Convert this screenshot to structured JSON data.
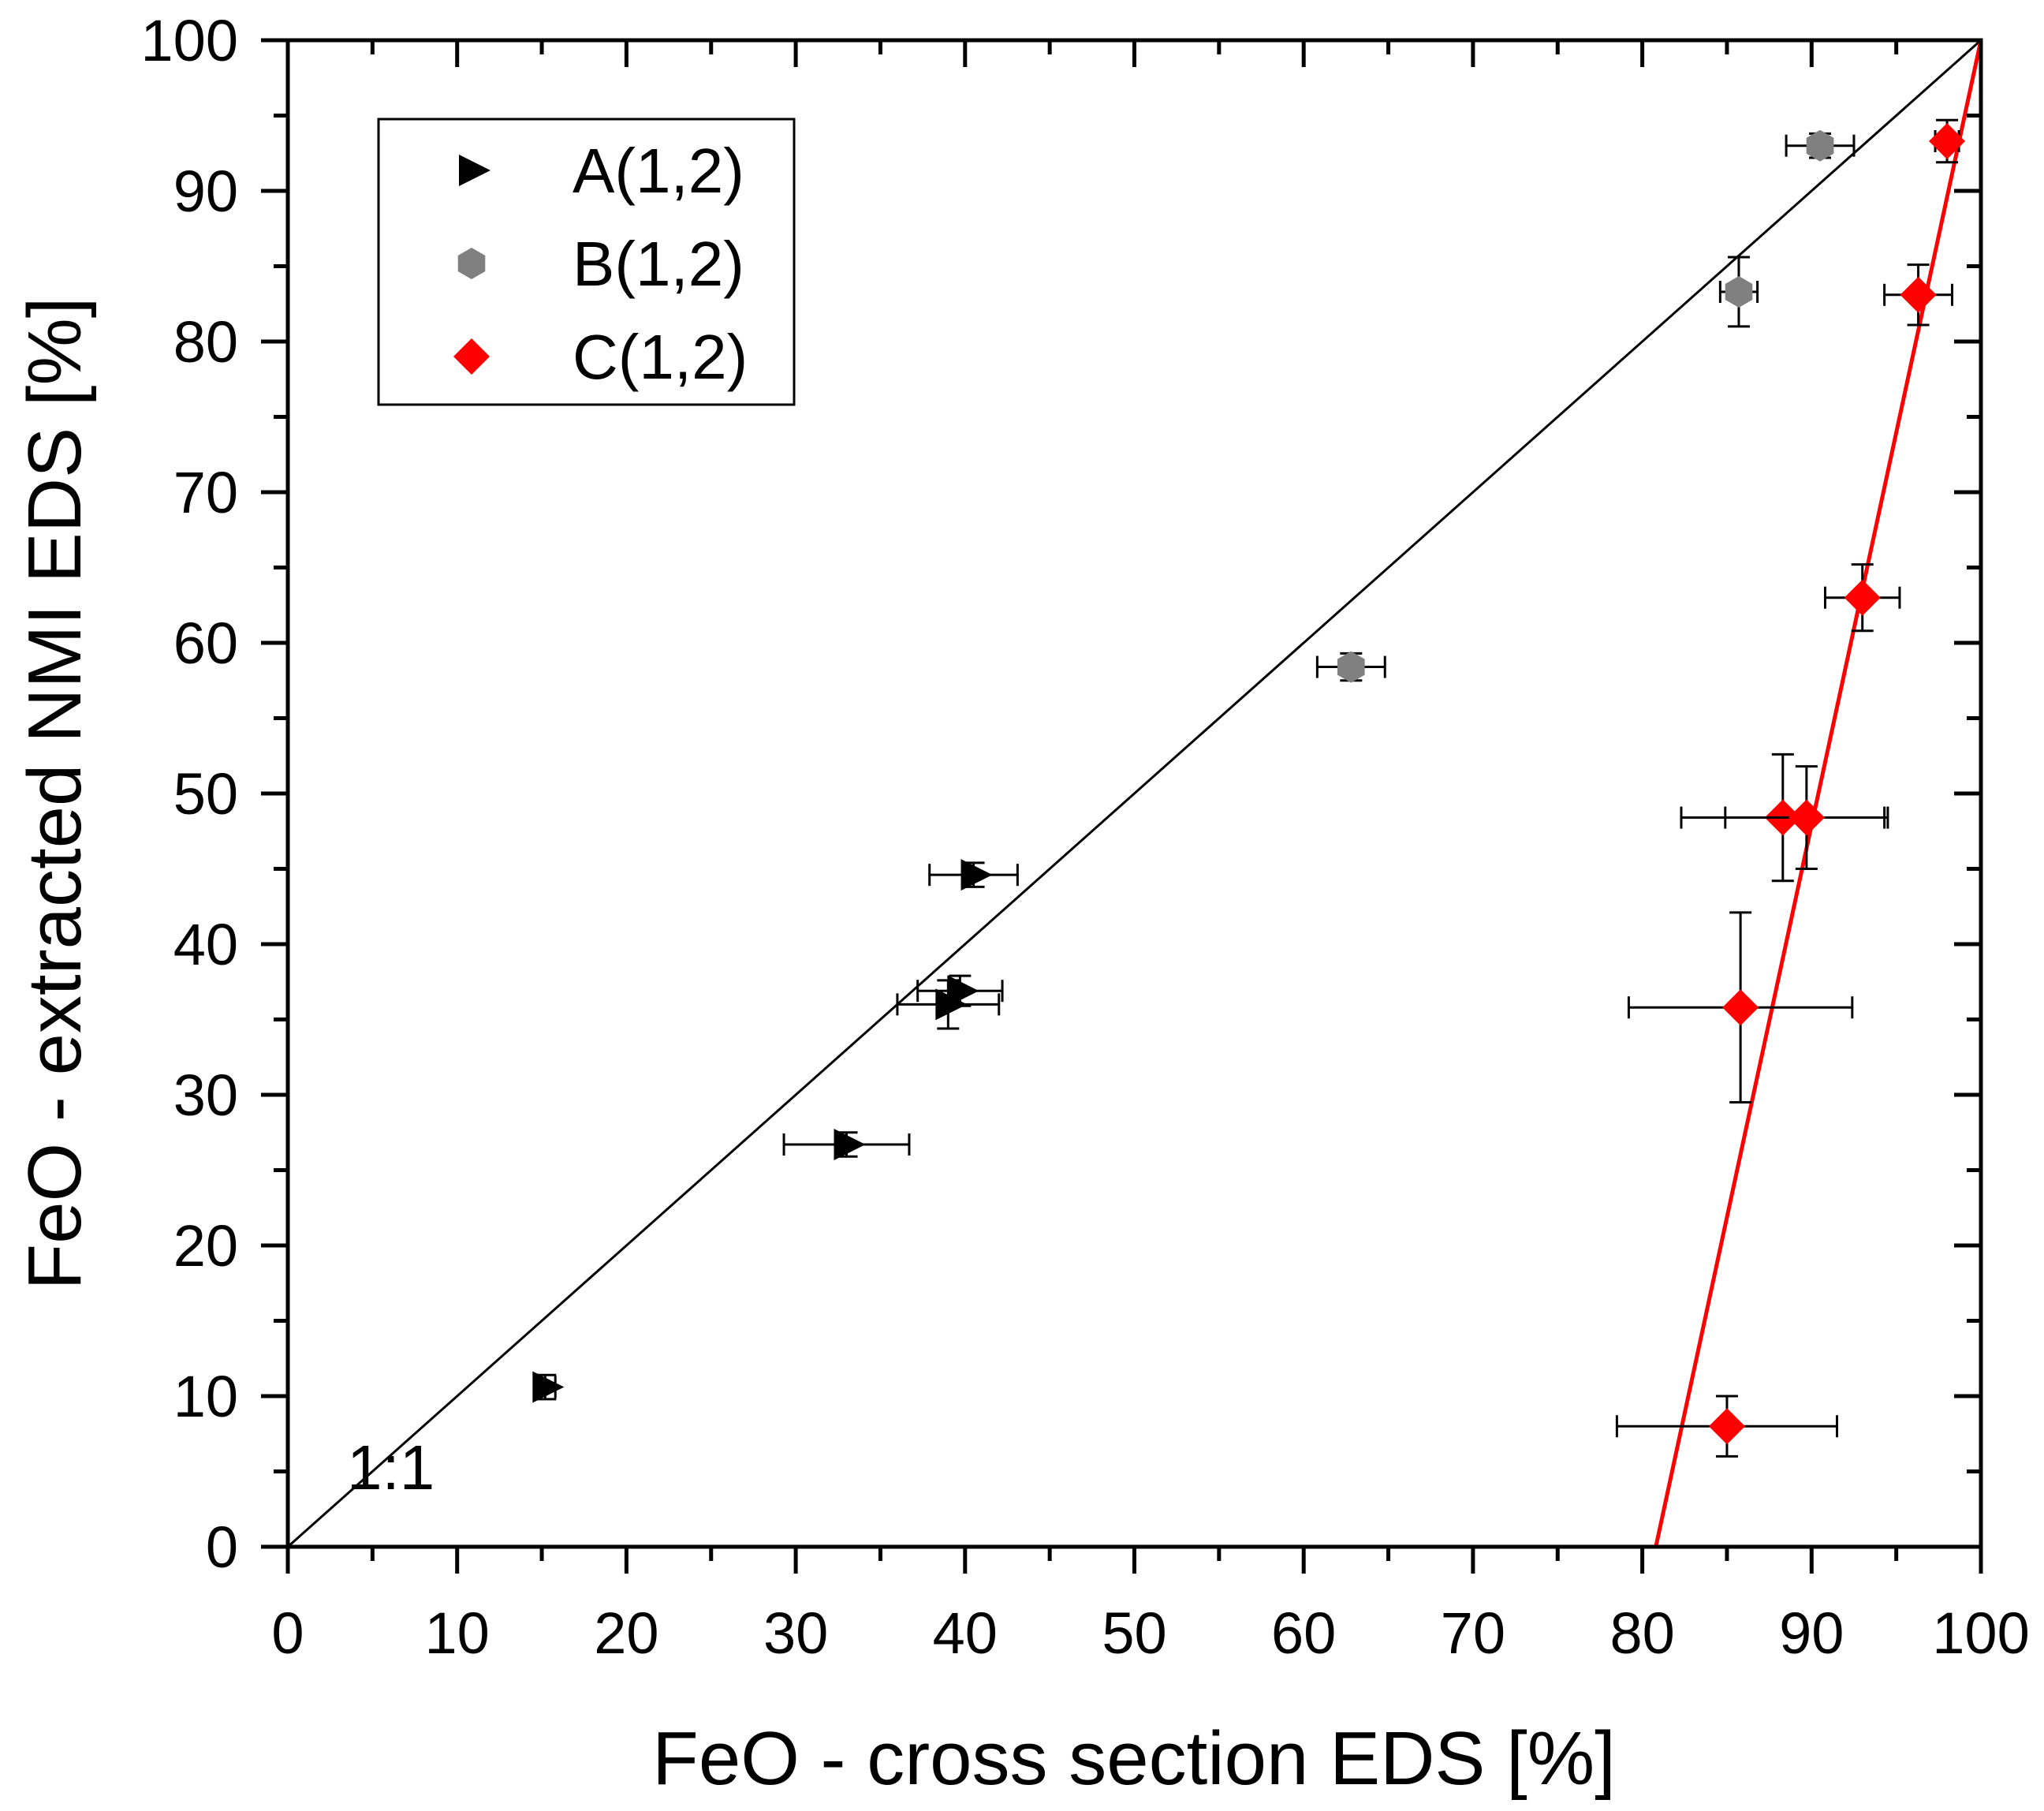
{
  "chart_data": {
    "type": "scatter",
    "xlabel": "FeO - cross section EDS [%]",
    "ylabel": "FeO - extracted NMI EDS [%]",
    "xlim": [
      0,
      100
    ],
    "ylim": [
      0,
      100
    ],
    "xticks": [
      0,
      10,
      20,
      30,
      40,
      50,
      60,
      70,
      80,
      90,
      100
    ],
    "yticks": [
      0,
      10,
      20,
      30,
      40,
      50,
      60,
      70,
      80,
      90,
      100
    ],
    "xtick_labels": [
      "0",
      "10",
      "20",
      "30",
      "40",
      "50",
      "60",
      "70",
      "80",
      "90",
      "100"
    ],
    "ytick_labels": [
      "0",
      "10",
      "20",
      "30",
      "40",
      "50",
      "60",
      "70",
      "80",
      "90",
      "100"
    ],
    "grid": false,
    "legend_position": "top-left",
    "annotation": "1:1",
    "reference_line": {
      "name": "1:1",
      "x": [
        0,
        100
      ],
      "y": [
        0,
        100
      ],
      "color": "#000000"
    },
    "fit_line": {
      "name": "C(1,2) fit",
      "x": [
        80.8,
        100
      ],
      "y": [
        0,
        100
      ],
      "color": "#ff0000"
    },
    "series": [
      {
        "name": "A(1,2)",
        "marker": "triangle-right",
        "color": "#000000",
        "points": [
          {
            "x": 15.2,
            "y": 10.6,
            "xerr": 0.6,
            "yerr": 0.8
          },
          {
            "x": 33.0,
            "y": 26.7,
            "xerr": 3.7,
            "yerr": 0.8
          },
          {
            "x": 39.0,
            "y": 36.0,
            "xerr": 3.0,
            "yerr": 1.6
          },
          {
            "x": 39.7,
            "y": 36.9,
            "xerr": 2.5,
            "yerr": 1.0
          },
          {
            "x": 40.5,
            "y": 44.6,
            "xerr": 2.6,
            "yerr": 0.8
          }
        ]
      },
      {
        "name": "B(1,2)",
        "marker": "hexagon",
        "color": "#808080",
        "points": [
          {
            "x": 62.8,
            "y": 58.4,
            "xerr": 2.0,
            "yerr": 0.9
          },
          {
            "x": 85.7,
            "y": 83.3,
            "xerr": 1.1,
            "yerr": 2.3
          },
          {
            "x": 90.5,
            "y": 93.0,
            "xerr": 2.0,
            "yerr": 0.8
          }
        ]
      },
      {
        "name": "C(1,2)",
        "marker": "diamond",
        "color": "#ff0000",
        "points": [
          {
            "x": 85.0,
            "y": 8.0,
            "xerr": 6.5,
            "yerr": 2.0
          },
          {
            "x": 85.8,
            "y": 35.8,
            "xerr": 6.6,
            "yerr": 6.3
          },
          {
            "x": 88.3,
            "y": 48.4,
            "xerr": 6.0,
            "yerr": 4.2
          },
          {
            "x": 89.7,
            "y": 48.4,
            "xerr": 4.8,
            "yerr": 3.4
          },
          {
            "x": 93.0,
            "y": 63.0,
            "xerr": 2.2,
            "yerr": 2.2
          },
          {
            "x": 96.3,
            "y": 83.1,
            "xerr": 2.0,
            "yerr": 2.0
          },
          {
            "x": 98.0,
            "y": 93.3,
            "xerr": 0.7,
            "yerr": 1.4
          }
        ]
      }
    ]
  }
}
